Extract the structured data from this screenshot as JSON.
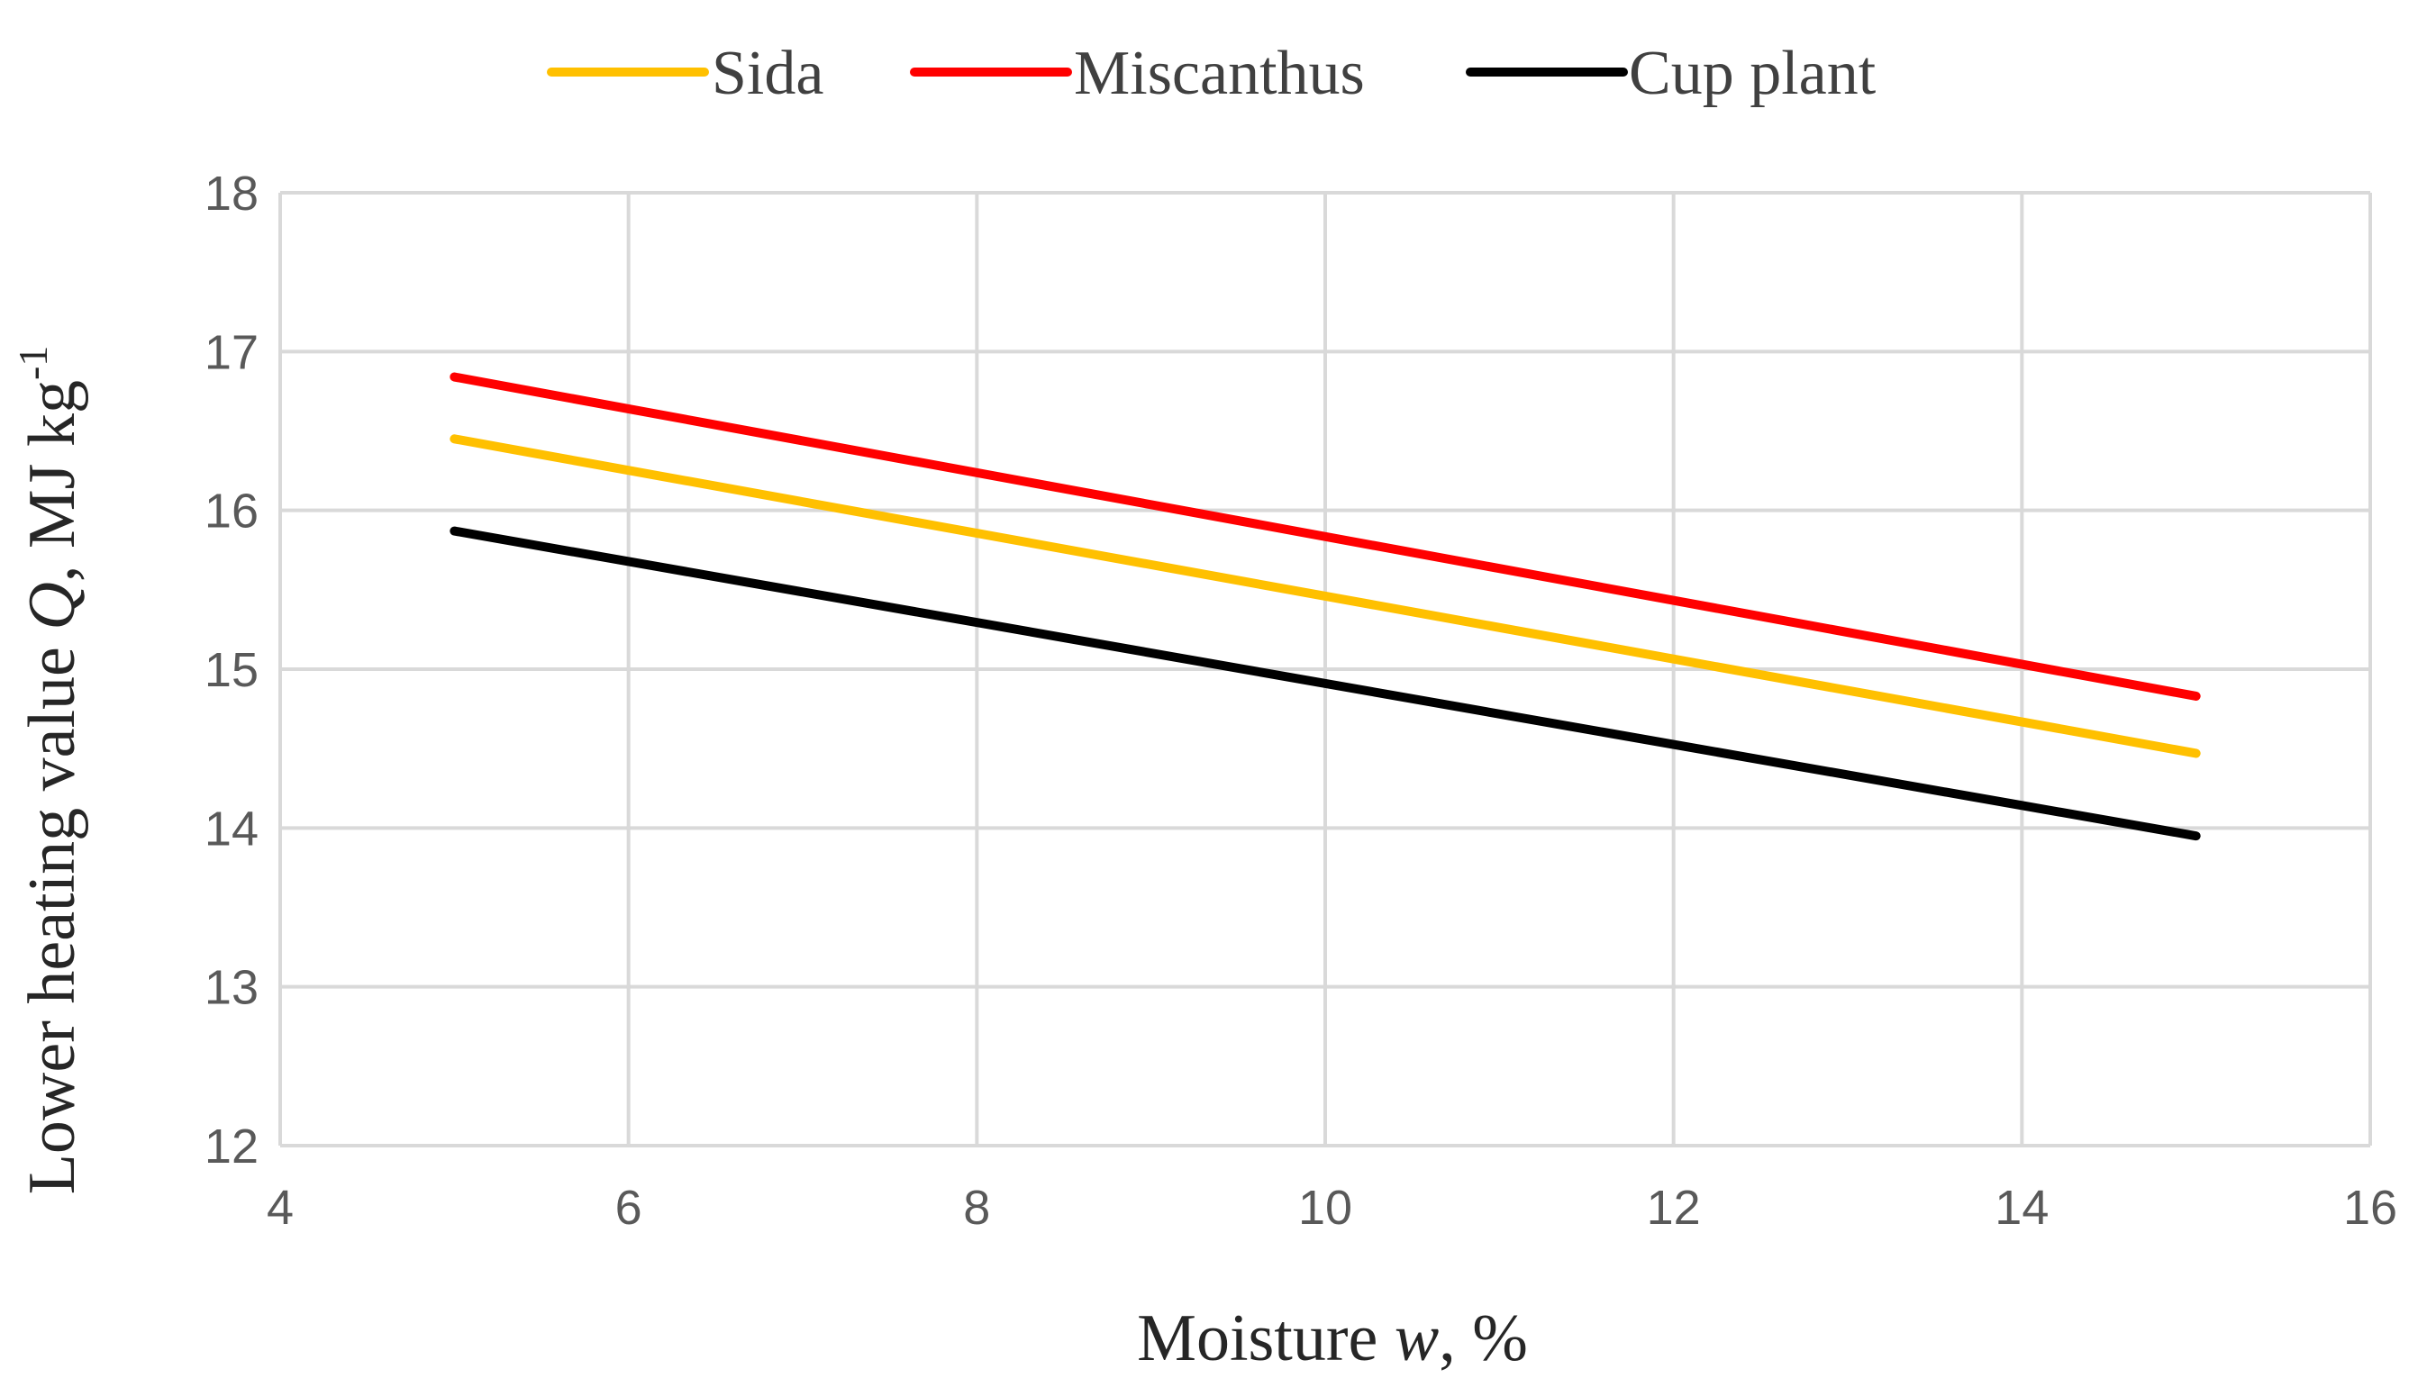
{
  "chart_data": {
    "type": "line",
    "title": "",
    "xlabel": "Moisture w, %",
    "xlabel_parts": {
      "pre": "Moisture ",
      "italic": "w",
      "post": ", %"
    },
    "ylabel": "Lower heating value Q, MJ kg-1",
    "ylabel_parts": {
      "pre": "Lower heating value ",
      "italic": "Q",
      "post": ", MJ kg",
      "sup": "-1"
    },
    "xlim": [
      4,
      16
    ],
    "ylim": [
      12,
      18
    ],
    "xticks": [
      4,
      6,
      8,
      10,
      12,
      14,
      16
    ],
    "yticks": [
      12,
      13,
      14,
      15,
      16,
      17,
      18
    ],
    "grid": true,
    "legend_position": "top-center",
    "x": [
      5,
      15
    ],
    "series": [
      {
        "name": "Sida",
        "color": "#FFC000",
        "values": [
          16.45,
          14.47
        ]
      },
      {
        "name": "Miscanthus",
        "color": "#FF0000",
        "values": [
          16.84,
          14.83
        ]
      },
      {
        "name": "Cup plant",
        "color": "#000000",
        "values": [
          15.87,
          13.95
        ]
      }
    ],
    "colors": {
      "grid": "#D9D9D9",
      "tick_text": "#595959",
      "axis_title": "#262626"
    }
  }
}
